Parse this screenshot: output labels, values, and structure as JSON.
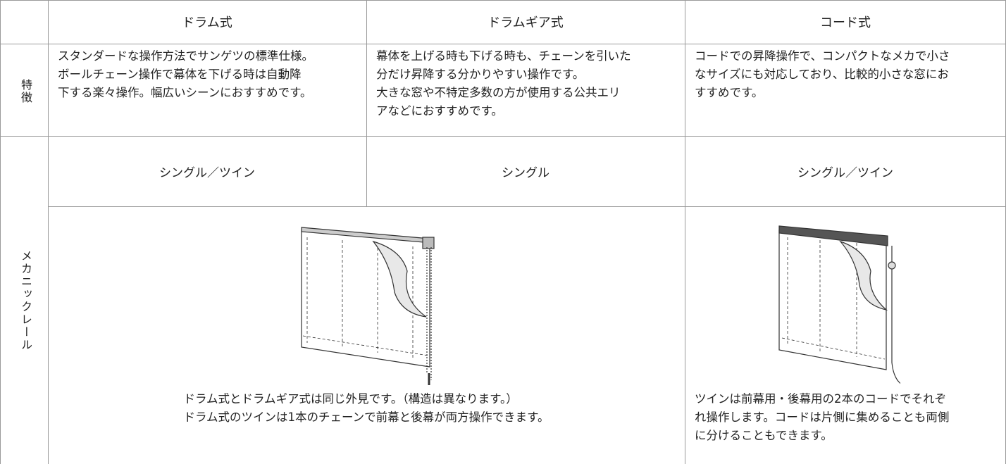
{
  "header": {
    "columns": [
      "ドラム式",
      "ドラムギア式",
      "コード式"
    ]
  },
  "features": {
    "label": "特徴",
    "cells": [
      [
        "スタンダードな操作方法でサンゲツの標準仕様。",
        "ボールチェーン操作で幕体を下げる時は自動降",
        "下する楽々操作。幅広いシーンにおすすめです。"
      ],
      [
        "幕体を上げる時も下げる時も、チェーンを引いた",
        "分だけ昇降する分かりやすい操作です。",
        "大きな窓や不特定多数の方が使用する公共エリ",
        "アなどにおすすめです。"
      ],
      [
        "コードでの昇降操作で、コンパクトなメカで小さ",
        "なサイズにも対応しており、比較的小さな窓にお",
        "すすめです。"
      ]
    ]
  },
  "mechanics": {
    "label": "メカニックレール",
    "types": [
      "シングル／ツイン",
      "シングル",
      "シングル／ツイン"
    ],
    "notes": [
      [
        "ドラム式とドラムギア式は同じ外見です。（構造は異なります。）",
        "ドラム式のツインは1本のチェーンで前幕と後幕が両方操作できます。"
      ],
      [
        "ツインは前幕用・後幕用の2本のコードでそれぞ",
        "れ操作します。コードは片側に集めることも両側",
        "に分けることもできます。"
      ]
    ]
  }
}
